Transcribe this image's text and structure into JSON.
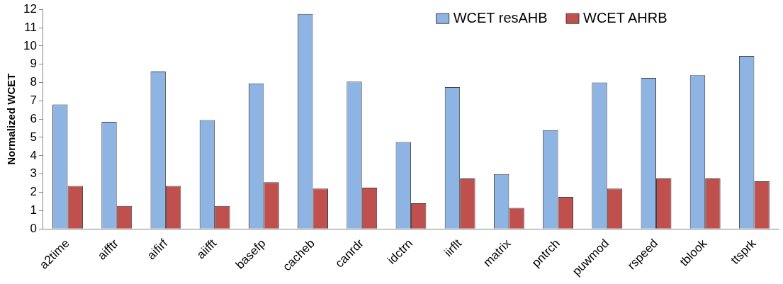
{
  "chart_data": {
    "type": "bar",
    "ylabel": "Normalized WCET",
    "categories": [
      "a2time",
      "aifftr",
      "aifirf",
      "aiifft",
      "basefp",
      "cacheb",
      "canrdr",
      "idctrn",
      "iirflt",
      "matrix",
      "pntrch",
      "puwmod",
      "rspeed",
      "tblook",
      "ttsprk"
    ],
    "series": [
      {
        "name": "WCET resAHB",
        "color": "#8eb4e3",
        "values": [
          6.8,
          5.85,
          8.6,
          5.95,
          7.95,
          11.75,
          8.05,
          4.75,
          7.75,
          3.0,
          5.4,
          8.0,
          8.25,
          8.4,
          9.45
        ]
      },
      {
        "name": "WCET AHRB",
        "color": "#c0504d",
        "values": [
          2.35,
          1.25,
          2.35,
          1.25,
          2.55,
          2.2,
          2.25,
          1.4,
          2.75,
          1.15,
          1.75,
          2.2,
          2.75,
          2.75,
          2.6
        ]
      }
    ],
    "ylim": [
      0,
      12
    ],
    "yticks": [
      0,
      1,
      2,
      3,
      4,
      5,
      6,
      7,
      8,
      9,
      10,
      11,
      12
    ],
    "grid": false,
    "legend": "top right"
  }
}
